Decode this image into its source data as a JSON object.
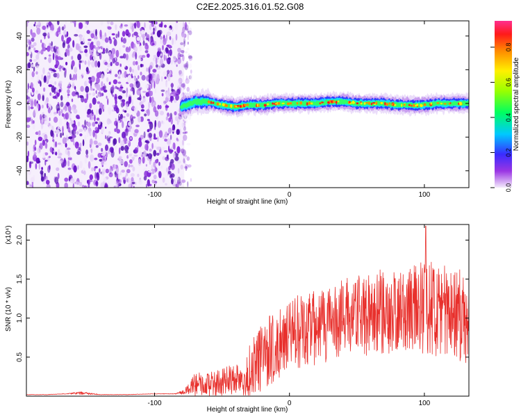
{
  "title": "C2E2.2025.316.01.52.G08",
  "chart_data": [
    {
      "type": "heatmap",
      "name": "spectrogram",
      "xlabel": "Height of straight line (km)",
      "ylabel": "Frequency (Hz)",
      "xlim": [
        -195,
        133
      ],
      "ylim": [
        -50,
        49
      ],
      "x_ticks": [
        -100,
        0,
        100
      ],
      "y_ticks": [
        -40,
        -20,
        0,
        20,
        40
      ],
      "noise_region_x": [
        -195,
        -78
      ],
      "signal_track": {
        "x": [
          -80,
          -70,
          -60,
          -50,
          -40,
          -30,
          -20,
          -10,
          0,
          10,
          20,
          30,
          40,
          50,
          60,
          70,
          80,
          90,
          100,
          110,
          120,
          133
        ],
        "frequency": [
          -2,
          1,
          1,
          -1,
          -2,
          -1,
          -1,
          0,
          0,
          0,
          0,
          1,
          1,
          0,
          0,
          0,
          -1,
          -1,
          -1,
          0,
          0,
          0
        ]
      },
      "colorbar": {
        "label": "Normalized spectral amplitude",
        "range": [
          0.0,
          0.95
        ],
        "ticks": [
          "0.0",
          "0.2",
          "0.4",
          "0.6",
          "0.8"
        ]
      }
    },
    {
      "type": "line",
      "name": "snr",
      "xlabel": "Height of straight line (km)",
      "ylabel": "SNR (10 * v/v)",
      "scale_label": "(x10⁴)",
      "xlim": [
        -195,
        133
      ],
      "ylim": [
        0,
        2.2
      ],
      "x_ticks": [
        -100,
        0,
        100
      ],
      "y_ticks": [
        "0.5",
        "1.0",
        "1.5",
        "2.0"
      ],
      "color": "#e8302c",
      "x": [
        -195,
        -180,
        -165,
        -155,
        -140,
        -120,
        -100,
        -85,
        -78,
        -70,
        -60,
        -50,
        -40,
        -30,
        -20,
        -10,
        0,
        10,
        20,
        30,
        40,
        50,
        60,
        70,
        80,
        90,
        100,
        110,
        120,
        133
      ],
      "values": [
        0.02,
        0.02,
        0.03,
        0.04,
        0.02,
        0.02,
        0.03,
        0.03,
        0.05,
        0.15,
        0.15,
        0.18,
        0.22,
        0.3,
        0.5,
        0.65,
        0.75,
        0.85,
        0.9,
        0.95,
        1.0,
        1.05,
        1.05,
        1.1,
        1.05,
        1.1,
        1.15,
        1.1,
        1.05,
        1.0
      ],
      "spread": [
        0.003,
        0.003,
        0.003,
        0.02,
        0.003,
        0.003,
        0.003,
        0.003,
        0.03,
        0.15,
        0.15,
        0.18,
        0.2,
        0.35,
        0.45,
        0.45,
        0.45,
        0.5,
        0.5,
        0.5,
        0.5,
        0.5,
        0.55,
        0.55,
        0.55,
        0.55,
        0.6,
        0.6,
        0.6,
        0.6
      ],
      "peak": {
        "x": 101,
        "value": 2.18
      }
    }
  ]
}
